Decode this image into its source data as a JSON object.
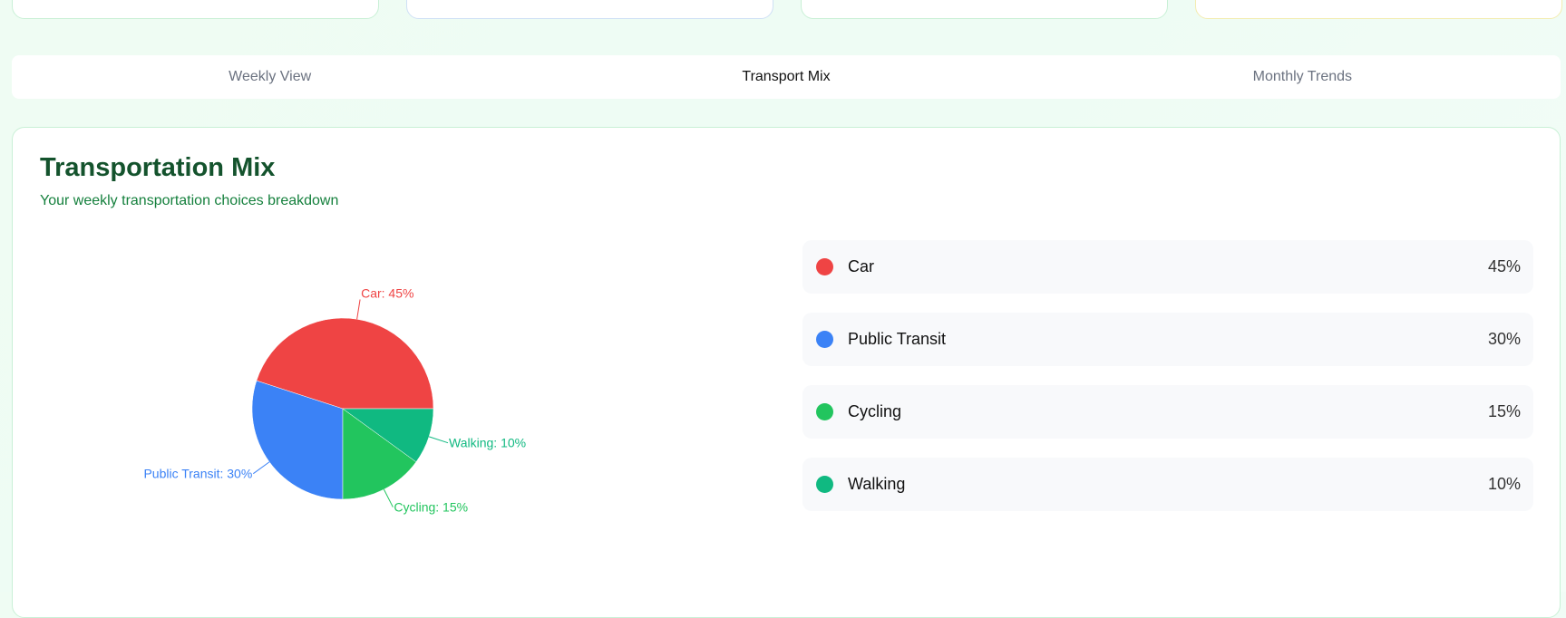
{
  "tabs": [
    {
      "label": "Weekly View",
      "active": false
    },
    {
      "label": "Transport Mix",
      "active": true
    },
    {
      "label": "Monthly Trends",
      "active": false
    }
  ],
  "card": {
    "title": "Transportation Mix",
    "subtitle": "Your weekly transportation choices breakdown"
  },
  "chart_data": {
    "type": "pie",
    "categories": [
      "Car",
      "Public Transit",
      "Cycling",
      "Walking"
    ],
    "values": [
      45,
      30,
      15,
      10
    ],
    "colors": [
      "#ef4444",
      "#3b82f6",
      "#22c55e",
      "#10b981"
    ],
    "labels": [
      "Car: 45%",
      "Public Transit: 30%",
      "Cycling: 15%",
      "Walking: 10%"
    ]
  },
  "legend": [
    {
      "label": "Car",
      "value": "45%",
      "color": "#ef4444"
    },
    {
      "label": "Public Transit",
      "value": "30%",
      "color": "#3b82f6"
    },
    {
      "label": "Cycling",
      "value": "15%",
      "color": "#22c55e"
    },
    {
      "label": "Walking",
      "value": "10%",
      "color": "#10b981"
    }
  ]
}
